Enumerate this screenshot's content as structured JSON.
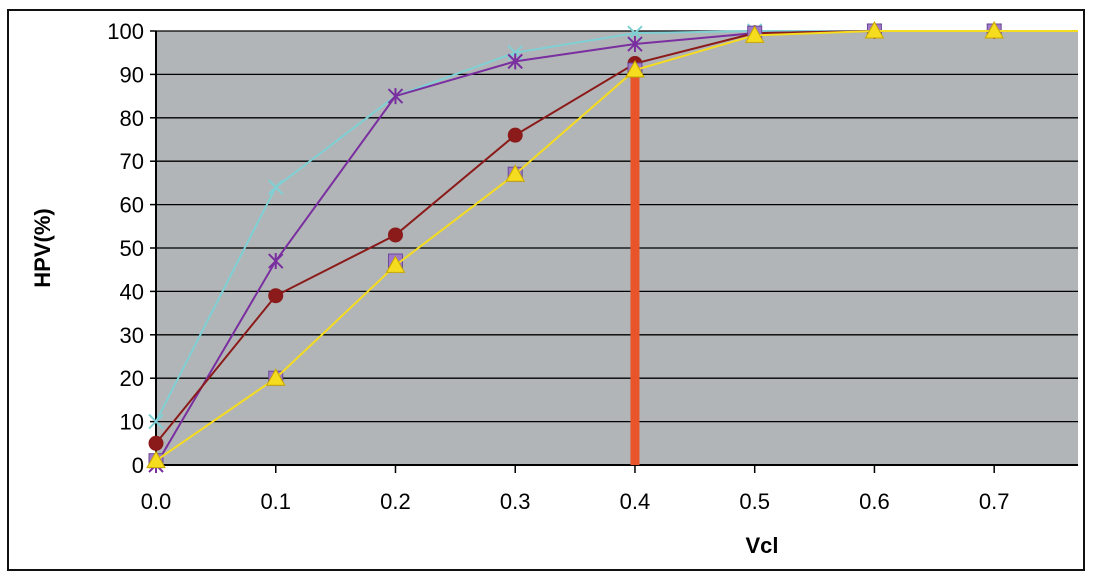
{
  "chart_data": {
    "type": "line",
    "xlabel": "Vcl",
    "ylabel": "HPV(%)",
    "x": [
      0.0,
      0.1,
      0.2,
      0.3,
      0.4,
      0.5,
      0.6,
      0.7
    ],
    "x_tick_labels": [
      "0.0",
      "0.1",
      "0.2",
      "0.3",
      "0.4",
      "0.5",
      "0.6",
      "0.7"
    ],
    "y_tick_labels": [
      "0",
      "10",
      "20",
      "30",
      "40",
      "50",
      "60",
      "70",
      "80",
      "90",
      "100"
    ],
    "xlim": [
      0.0,
      0.77
    ],
    "ylim": [
      0,
      100
    ],
    "grid": true,
    "plot_background": "#b2b5b7",
    "series": [
      {
        "marker": "x",
        "color": "#7fd0d4",
        "x": [
          0.0,
          0.1,
          0.2,
          0.3,
          0.4,
          0.5,
          0.6,
          0.7,
          0.77
        ],
        "y": [
          10,
          64,
          85,
          95,
          99.5,
          100,
          100,
          100,
          100
        ]
      },
      {
        "marker": "asterisk",
        "color": "#7a2fa0",
        "x": [
          0.0,
          0.1,
          0.2,
          0.3,
          0.4,
          0.5,
          0.6,
          0.7,
          0.77
        ],
        "y": [
          0,
          47,
          85,
          93,
          97,
          99.5,
          100,
          100,
          100
        ]
      },
      {
        "marker": "circle",
        "color": "#8b1a1a",
        "x": [
          0.0,
          0.1,
          0.2,
          0.3,
          0.4,
          0.5,
          0.6,
          0.7,
          0.77
        ],
        "y": [
          5,
          39,
          53,
          76,
          92.5,
          99.5,
          100,
          100,
          100
        ]
      },
      {
        "marker": "square",
        "color": "#a078c8",
        "x": [
          0.0,
          0.1,
          0.2,
          0.3,
          0.4,
          0.5,
          0.6,
          0.7
        ],
        "y": [
          1,
          20,
          47,
          67,
          91,
          99.5,
          100,
          100
        ]
      },
      {
        "marker": "triangle",
        "color": "#f5dc1e",
        "x": [
          0.0,
          0.1,
          0.2,
          0.3,
          0.4,
          0.5,
          0.6,
          0.7,
          0.77
        ],
        "y": [
          1,
          20,
          46,
          67,
          91,
          99,
          100,
          100,
          100
        ]
      }
    ],
    "annotations": [
      {
        "type": "vertical-line",
        "x": 0.4,
        "y_from": 0,
        "y_to": 91,
        "color": "#e8552a"
      }
    ]
  }
}
